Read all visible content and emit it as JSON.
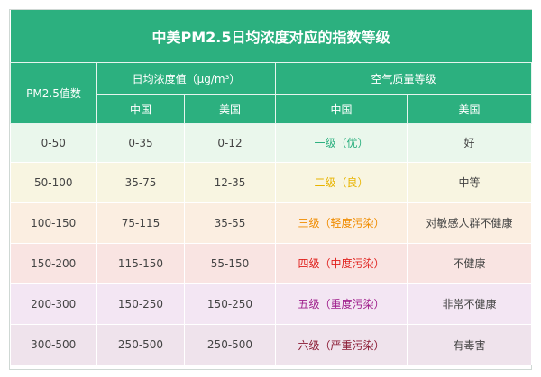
{
  "title": "中美PM2.5日均浓度对应的指数等级",
  "headers": {
    "pm25_index": "PM2.5值数",
    "daily_conc": "日均浓度值（μg/m³）",
    "aq_level": "空气质量等级",
    "china": "中国",
    "usa": "美国"
  },
  "rows": [
    {
      "index": "0-50",
      "cn_conc": "0-35",
      "us_conc": "0-12",
      "cn_level": "一级（优）",
      "us_level": "好",
      "color": "#2cb07f"
    },
    {
      "index": "50-100",
      "cn_conc": "35-75",
      "us_conc": "12-35",
      "cn_level": "二级（良）",
      "us_level": "中等",
      "color": "#e8b400"
    },
    {
      "index": "100-150",
      "cn_conc": "75-115",
      "us_conc": "35-55",
      "cn_level": "三级（轻度污染）",
      "us_level": "对敏感人群不健康",
      "color": "#f08c00"
    },
    {
      "index": "150-200",
      "cn_conc": "115-150",
      "us_conc": "55-150",
      "cn_level": "四级（中度污染）",
      "us_level": "不健康",
      "color": "#e0201c"
    },
    {
      "index": "200-300",
      "cn_conc": "150-250",
      "us_conc": "150-250",
      "cn_level": "五级（重度污染）",
      "us_level": "非常不健康",
      "color": "#a0208c"
    },
    {
      "index": "300-500",
      "cn_conc": "250-500",
      "us_conc": "250-500",
      "cn_level": "六级（严重污染）",
      "us_level": "有毒害",
      "color": "#8a1a33"
    }
  ]
}
